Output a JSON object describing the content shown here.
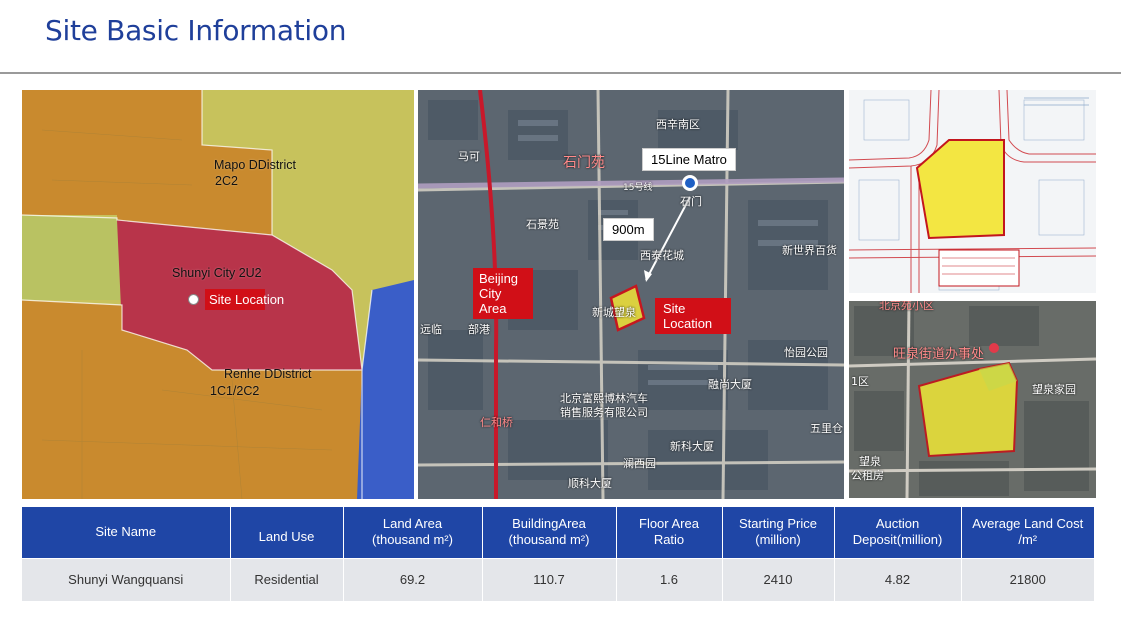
{
  "page": {
    "title": "Site Basic Information"
  },
  "district_map": {
    "labels": {
      "mapo": "Mapo DDistrict",
      "mapo_code": "2C2",
      "shunyi": "Shunyi City 2U2",
      "site": "Site Location",
      "renhe": "Renhe DDistrict",
      "renhe_code": "1C1/2C2"
    },
    "colors": {
      "yellow": "#c6c15a",
      "orange": "#c98a2e",
      "red": "#b8344a",
      "blue": "#3a5ec8"
    }
  },
  "satellite_map": {
    "metro_label": "15Line Matro",
    "distance_label": "900m",
    "city_area_label": [
      "Beijing",
      "City",
      "Area"
    ],
    "site_label": [
      "Site",
      "Location"
    ],
    "place_names": {
      "xixinnanqu": "西辛南区",
      "shimenyuan": "石门苑",
      "line15": "15号线",
      "shimen": "石门",
      "shijingyuan": "石景苑",
      "xinshijie": "新世界百货",
      "xitaihuacheng": "西泰花城",
      "mahe": "马可",
      "xinwangquan": "新城望泉",
      "yiyanggongyuan": "怡园公园",
      "fuxi": "北京富熙博林汽车",
      "xiaoshou": "销售服务有限公司",
      "rongshang": "融尚大厦",
      "xinkedasha": "新科大厦",
      "wulicang": "五里仓",
      "lanxiyuan": "澜西园",
      "shunkedasha": "顺科大厦",
      "renhe_bridge": "仁和桥",
      "yuanlin": "远临",
      "bugang": "部港"
    }
  },
  "aerial_map": {
    "place_names": {
      "huaxi": "北京苑小区",
      "wangquan_office": "旺泉街道办事处",
      "wangquan_home": "望泉家园",
      "district": "1区",
      "wangquan_rent": "望泉",
      "rent": "公租房"
    }
  },
  "table": {
    "headers": [
      [
        "Site Name"
      ],
      [
        "Land Use"
      ],
      [
        "Land Area",
        "(thousand m²)"
      ],
      [
        "BuildingArea",
        "(thousand m²)"
      ],
      [
        "Floor Area",
        "Ratio"
      ],
      [
        "Starting Price",
        "(million)"
      ],
      [
        "Auction",
        "Deposit(million)"
      ],
      [
        "Average Land Cost",
        "/m²"
      ]
    ],
    "rows": [
      [
        "Shunyi Wangquansi",
        "Residential",
        "69.2",
        "110.7",
        "1.6",
        "2410",
        "4.82",
        "21800"
      ]
    ]
  }
}
